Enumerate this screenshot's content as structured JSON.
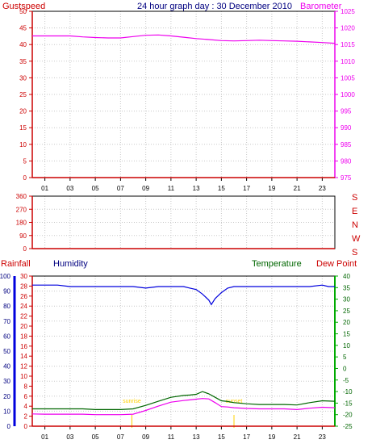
{
  "title": "24 hour graph day : 30 December 2010",
  "colors": {
    "red": "#cc0000",
    "magenta": "#ee00ee",
    "navy": "#000080",
    "blue": "#0000dd",
    "green": "#006600",
    "brightgreen": "#00aa00",
    "grid": "#c8c8c8",
    "yellow": "#ffd000",
    "frame": "#000000"
  },
  "chart_data": [
    {
      "type": "line",
      "id": "wind-baro",
      "left_label": "Gustspeed",
      "right_label": "Barometer",
      "x_ticks": [
        "01",
        "03",
        "05",
        "07",
        "09",
        "11",
        "13",
        "15",
        "17",
        "19",
        "21",
        "23"
      ],
      "xlim": [
        0,
        24
      ],
      "left_ylim": [
        0,
        50
      ],
      "left_ticks": [
        0,
        5,
        10,
        15,
        20,
        25,
        30,
        35,
        40,
        45,
        50
      ],
      "right_ylim": [
        975,
        1025
      ],
      "right_ticks": [
        975,
        980,
        985,
        990,
        995,
        1000,
        1005,
        1010,
        1015,
        1020,
        1025
      ],
      "series": [
        {
          "axis": "left",
          "color": "red",
          "x": [
            0,
            24
          ],
          "y": [
            0,
            0
          ]
        },
        {
          "axis": "right",
          "color": "magenta",
          "x": [
            0,
            1,
            2,
            3,
            4,
            5,
            6,
            7,
            8,
            9,
            10,
            11,
            12,
            13,
            14,
            15,
            16,
            17,
            18,
            19,
            20,
            21,
            22,
            23,
            24
          ],
          "y": [
            1017.6,
            1017.6,
            1017.6,
            1017.6,
            1017.3,
            1017.1,
            1017.0,
            1017.0,
            1017.4,
            1017.8,
            1017.9,
            1017.6,
            1017.2,
            1016.8,
            1016.5,
            1016.2,
            1016.1,
            1016.2,
            1016.3,
            1016.2,
            1016.1,
            1016.0,
            1015.8,
            1015.6,
            1015.4
          ]
        }
      ]
    },
    {
      "type": "line",
      "id": "wind-direction",
      "xlim": [
        0,
        24
      ],
      "left_ylim": [
        0,
        360
      ],
      "left_ticks": [
        0,
        90,
        180,
        270,
        360
      ],
      "right_labels": [
        "S",
        "E",
        "N",
        "W",
        "S"
      ],
      "series": [
        {
          "axis": "left",
          "color": "red",
          "x": [
            0,
            24
          ],
          "y": [
            0,
            0
          ]
        }
      ]
    },
    {
      "type": "line",
      "id": "temp-hum",
      "x_ticks": [
        "01",
        "03",
        "05",
        "07",
        "09",
        "11",
        "13",
        "15",
        "17",
        "19",
        "21",
        "23"
      ],
      "xlim": [
        0,
        24
      ],
      "labels": {
        "rainfall": "Rainfall",
        "humidity": "Humidity",
        "temperature": "Temperature",
        "dewpoint": "Dew Point"
      },
      "humidity_ylim": [
        0,
        100
      ],
      "humidity_ticks": [
        0,
        10,
        20,
        30,
        40,
        50,
        60,
        70,
        80,
        90,
        100
      ],
      "rain_ylim": [
        0,
        30
      ],
      "rain_ticks": [
        0,
        2,
        4,
        6,
        8,
        10,
        12,
        14,
        16,
        18,
        20,
        22,
        24,
        26,
        28,
        30
      ],
      "temp_ylim": [
        -25,
        40
      ],
      "temp_ticks": [
        -25,
        -20,
        -15,
        -10,
        -5,
        0,
        5,
        10,
        15,
        20,
        25,
        30,
        35,
        40
      ],
      "annotations": [
        {
          "text": "sunrise",
          "x": 7.9
        },
        {
          "text": "sunset",
          "x": 16.0
        }
      ],
      "series": [
        {
          "name": "Humidity",
          "axis": "humidity",
          "color": "blue",
          "x": [
            0,
            1,
            2,
            3,
            4,
            5,
            6,
            6.5,
            7,
            8,
            9,
            10,
            11,
            12,
            12.5,
            13,
            13.5,
            14,
            14.2,
            14.5,
            15,
            15.5,
            16,
            17,
            18,
            19,
            20,
            21,
            22,
            23,
            23.5,
            24
          ],
          "y": [
            94,
            94,
            94,
            93,
            93,
            93,
            93,
            93,
            93,
            93,
            92,
            93,
            93,
            93,
            92,
            91,
            88,
            84,
            81,
            85,
            89,
            92,
            93,
            93,
            93,
            93,
            93,
            93,
            93,
            94,
            93,
            93
          ]
        },
        {
          "name": "Temperature",
          "axis": "temp",
          "color": "green",
          "x": [
            0,
            1,
            2,
            3,
            4,
            5,
            6,
            7,
            8,
            9,
            10,
            11,
            12,
            12.5,
            13,
            13.5,
            14,
            14.5,
            15,
            15.5,
            16,
            17,
            18,
            19,
            20,
            21,
            22,
            23,
            24
          ],
          "y": [
            -17.5,
            -17.5,
            -17.5,
            -17.5,
            -17.5,
            -17.8,
            -17.8,
            -17.8,
            -17.5,
            -16.0,
            -14.2,
            -12.5,
            -11.7,
            -11.5,
            -11.2,
            -10.0,
            -11.0,
            -12.5,
            -14.0,
            -14.3,
            -14.8,
            -15.3,
            -15.6,
            -15.6,
            -15.6,
            -15.8,
            -14.8,
            -14.0,
            -14.2
          ]
        },
        {
          "name": "Dew Point",
          "axis": "temp",
          "color": "magenta",
          "x": [
            0,
            1,
            2,
            3,
            4,
            5,
            6,
            7,
            8,
            9,
            10,
            11,
            12,
            12.5,
            13,
            13.5,
            14,
            14.5,
            15,
            15.5,
            16,
            17,
            18,
            19,
            20,
            21,
            22,
            23,
            24
          ],
          "y": [
            -19.7,
            -19.8,
            -19.8,
            -19.8,
            -19.8,
            -20.0,
            -20.0,
            -20.0,
            -19.8,
            -18.2,
            -16.3,
            -14.6,
            -13.9,
            -13.6,
            -13.3,
            -13.0,
            -13.2,
            -14.8,
            -16.5,
            -16.7,
            -17.0,
            -17.3,
            -17.5,
            -17.5,
            -17.5,
            -17.8,
            -17.2,
            -16.8,
            -17.0
          ]
        },
        {
          "name": "Rainfall",
          "axis": "rain",
          "color": "red",
          "x": [
            0,
            24
          ],
          "y": [
            0,
            0
          ]
        }
      ]
    }
  ]
}
